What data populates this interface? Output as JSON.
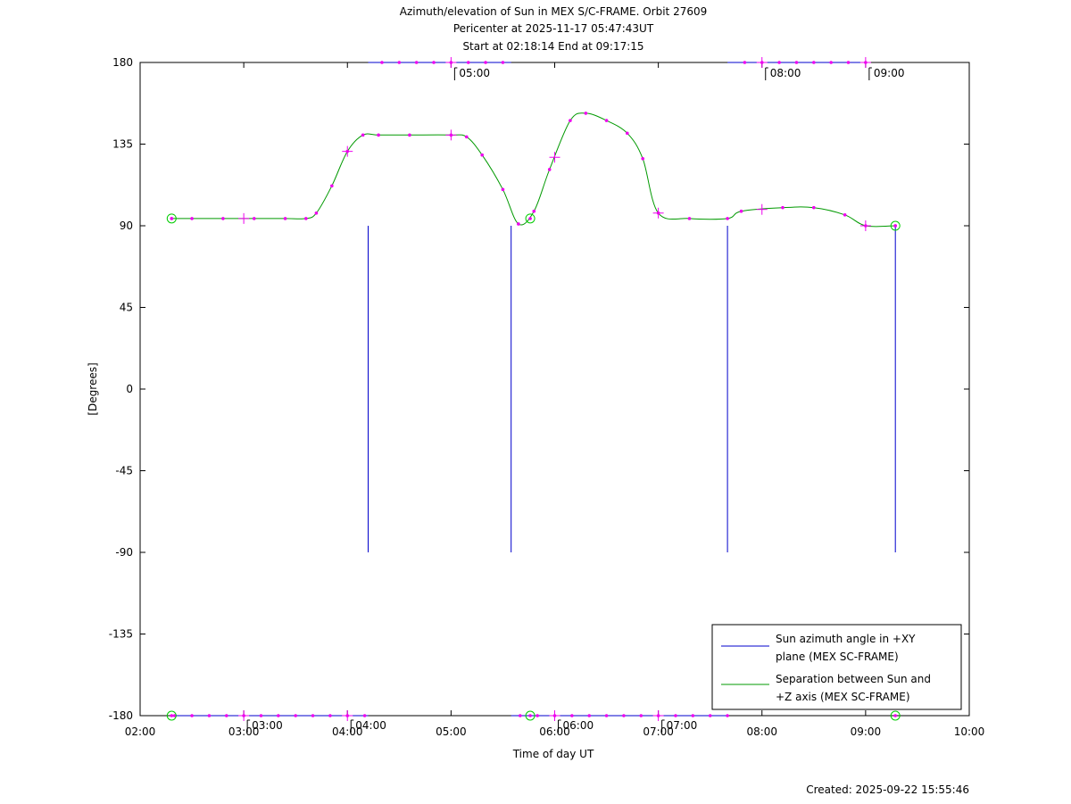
{
  "chart_data": {
    "type": "line",
    "title_lines": [
      "Azimuth/elevation of Sun in MEX S/C-FRAME.  Orbit 27609",
      "Pericenter at 2025-11-17 05:47:43UT",
      "Start at 02:18:14 End at 09:17:15"
    ],
    "xlabel": "Time of day UT",
    "ylabel": "[Degrees]",
    "xlim": [
      2.0,
      10.0
    ],
    "ylim": [
      -180,
      180
    ],
    "x_ticks": [
      {
        "v": 2,
        "label": "02:00"
      },
      {
        "v": 3,
        "label": "03:00"
      },
      {
        "v": 4,
        "label": "04:00"
      },
      {
        "v": 5,
        "label": "05:00"
      },
      {
        "v": 6,
        "label": "06:00"
      },
      {
        "v": 7,
        "label": "07:00"
      },
      {
        "v": 8,
        "label": "08:00"
      },
      {
        "v": 9,
        "label": "09:00"
      },
      {
        "v": 10,
        "label": "10:00"
      }
    ],
    "y_ticks": [
      180,
      135,
      90,
      45,
      0,
      -45,
      -90,
      -135,
      -180
    ],
    "footer": "Created: 2025-09-22 15:55:46",
    "legend_position": "bottom-right",
    "series": [
      {
        "name": "Sun azimuth angle in +XY plane (MEX SC-FRAME)",
        "legend_lines": [
          "Sun azimuth angle in +XY",
          "plane (MEX SC-FRAME)"
        ],
        "color": "#0000cc",
        "segments": [
          [
            [
              2.304,
              -180
            ],
            [
              4.2,
              -180
            ]
          ],
          [
            [
              4.2,
              -90
            ],
            [
              4.2,
              90
            ]
          ],
          [
            [
              4.2,
              180
            ],
            [
              5.58,
              180
            ]
          ],
          [
            [
              5.58,
              90
            ],
            [
              5.58,
              -90
            ]
          ],
          [
            [
              5.58,
              -180
            ],
            [
              7.667,
              -180
            ]
          ],
          [
            [
              7.667,
              -90
            ],
            [
              7.667,
              90
            ]
          ],
          [
            [
              7.667,
              180
            ],
            [
              9.0,
              180
            ]
          ],
          [
            [
              9.287,
              90
            ],
            [
              9.287,
              -90
            ]
          ]
        ]
      },
      {
        "name": "Separation between Sun and +Z axis (MEX SC-FRAME)",
        "legend_lines": [
          "Separation between Sun and",
          "+Z axis (MEX SC-FRAME)"
        ],
        "color": "#009900",
        "x": [
          2.304,
          2.5,
          2.8,
          3.1,
          3.4,
          3.6,
          3.7,
          3.85,
          4.0,
          4.15,
          4.3,
          4.6,
          5.0,
          5.15,
          5.3,
          5.5,
          5.65,
          5.8,
          5.95,
          6.15,
          6.3,
          6.5,
          6.7,
          6.85,
          7.0,
          7.3,
          7.667,
          7.8,
          8.2,
          8.5,
          8.8,
          9.0,
          9.287
        ],
        "y": [
          94,
          94,
          94,
          94,
          94,
          94,
          97,
          112,
          131,
          140,
          140,
          140,
          140,
          139,
          129,
          110,
          91,
          98,
          121,
          148,
          152,
          148,
          141,
          127,
          97,
          94,
          94,
          98,
          100,
          100,
          96,
          90,
          90
        ]
      }
    ],
    "azimuth_markers": [
      {
        "x": 5.0,
        "label": "05:00",
        "edge": "top"
      },
      {
        "x": 8.0,
        "label": "08:00",
        "edge": "top"
      },
      {
        "x": 9.0,
        "label": "09:00",
        "edge": "top"
      },
      {
        "x": 3.0,
        "label": "03:00",
        "edge": "bottom"
      },
      {
        "x": 4.0,
        "label": "04:00",
        "edge": "bottom"
      },
      {
        "x": 6.0,
        "label": "06:00",
        "edge": "bottom"
      },
      {
        "x": 7.0,
        "label": "07:00",
        "edge": "bottom"
      }
    ],
    "start_end_markers": [
      {
        "x": 2.304,
        "y": 94
      },
      {
        "x": 5.764,
        "y": 94
      },
      {
        "x": 9.287,
        "y": 90
      },
      {
        "x": 2.304,
        "y": -180
      },
      {
        "x": 5.764,
        "y": -180
      },
      {
        "x": 9.287,
        "y": -180
      }
    ]
  }
}
